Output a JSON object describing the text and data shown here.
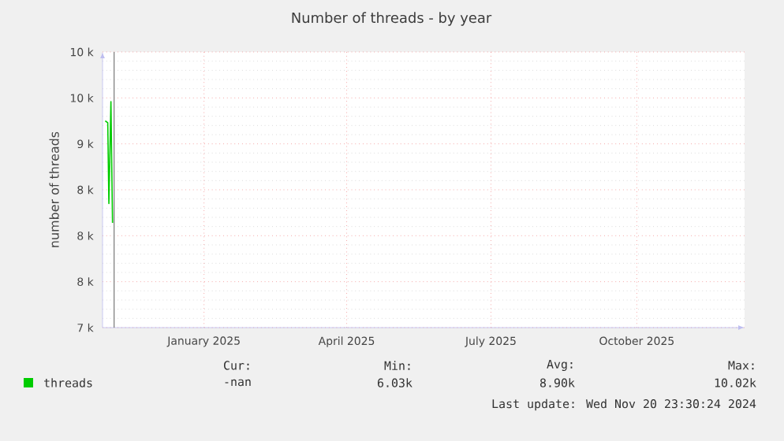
{
  "chart_data": {
    "type": "line",
    "title": "Number of threads - by year",
    "ylabel": "number of threads",
    "x": [
      "2024-10-30T17:00",
      "2024-11-01T07:00",
      "2024-11-02T00:00",
      "2024-11-03T07:00",
      "2024-11-04T07:00"
    ],
    "series": [
      {
        "name": "threads",
        "color": "#00cc00",
        "values": [
          9250,
          9230,
          8350,
          9460,
          8140
        ]
      }
    ],
    "xlim": [
      "2024-10-29",
      "2025-12-08"
    ],
    "xticks": [
      {
        "value": "2025-01-01",
        "label": "January 2025"
      },
      {
        "value": "2025-04-01",
        "label": "April 2025"
      },
      {
        "value": "2025-07-01",
        "label": "July 2025"
      },
      {
        "value": "2025-10-01",
        "label": "October 2025"
      }
    ],
    "ylim": [
      7000,
      10000
    ],
    "yticks": [
      {
        "value": 7000,
        "label": "7 k"
      },
      {
        "value": 7500,
        "label": "8 k"
      },
      {
        "value": 8000,
        "label": "8 k"
      },
      {
        "value": 8500,
        "label": "8 k"
      },
      {
        "value": 9000,
        "label": "9 k"
      },
      {
        "value": 9500,
        "label": "10 k"
      },
      {
        "value": 10000,
        "label": "10 k"
      }
    ],
    "ref_lines": [
      {
        "axis": "x",
        "value": "2024-11-05T07:00",
        "color": "#777777"
      }
    ],
    "grid": true,
    "legend": "bottom left",
    "annotations": [
      "Cur:",
      "Min:",
      "Avg:",
      "Max:",
      "-nan",
      "6.03k",
      "8.90k",
      "10.02k",
      "Last update: Wed Nov 20 23:30:24 2024"
    ]
  }
}
